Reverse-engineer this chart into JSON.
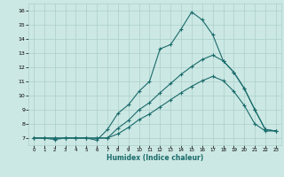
{
  "xlabel": "Humidex (Indice chaleur)",
  "xlim": [
    -0.5,
    23.5
  ],
  "ylim": [
    6.5,
    16.5
  ],
  "yticks": [
    7,
    8,
    9,
    10,
    11,
    12,
    13,
    14,
    15,
    16
  ],
  "xticks": [
    0,
    1,
    2,
    3,
    4,
    5,
    6,
    7,
    8,
    9,
    10,
    11,
    12,
    13,
    14,
    15,
    16,
    17,
    18,
    19,
    20,
    21,
    22,
    23
  ],
  "bg_color": "#cce8e4",
  "grid_color": "#aacfca",
  "line_color": "#1a6b6b",
  "line1_x": [
    0,
    1,
    2,
    3,
    4,
    5,
    6,
    7,
    8,
    9,
    10,
    11,
    12,
    13,
    14,
    15,
    16,
    17,
    18,
    19,
    20,
    21,
    22,
    23
  ],
  "line1_y": [
    7.0,
    7.0,
    6.9,
    7.0,
    7.0,
    7.0,
    6.85,
    7.6,
    8.75,
    9.35,
    10.3,
    11.0,
    13.3,
    13.6,
    14.7,
    15.9,
    15.35,
    14.3,
    12.45,
    11.65,
    10.5,
    9.0,
    7.6,
    7.5
  ],
  "line2_x": [
    0,
    1,
    2,
    3,
    4,
    5,
    6,
    7,
    8,
    9,
    10,
    11,
    12,
    13,
    14,
    15,
    16,
    17,
    18,
    19,
    20,
    21,
    22,
    23
  ],
  "line2_y": [
    7.0,
    7.0,
    7.0,
    7.0,
    7.0,
    7.0,
    7.0,
    7.0,
    7.7,
    8.25,
    9.0,
    9.5,
    10.2,
    10.85,
    11.5,
    12.05,
    12.55,
    12.85,
    12.45,
    11.65,
    10.5,
    9.0,
    7.6,
    7.5
  ],
  "line3_x": [
    0,
    1,
    2,
    3,
    4,
    5,
    6,
    7,
    8,
    9,
    10,
    11,
    12,
    13,
    14,
    15,
    16,
    17,
    18,
    19,
    20,
    21,
    22,
    23
  ],
  "line3_y": [
    7.0,
    7.0,
    7.0,
    7.0,
    7.0,
    7.0,
    7.0,
    7.0,
    7.3,
    7.75,
    8.3,
    8.7,
    9.2,
    9.7,
    10.2,
    10.65,
    11.05,
    11.35,
    11.05,
    10.3,
    9.3,
    8.0,
    7.5,
    7.5
  ]
}
